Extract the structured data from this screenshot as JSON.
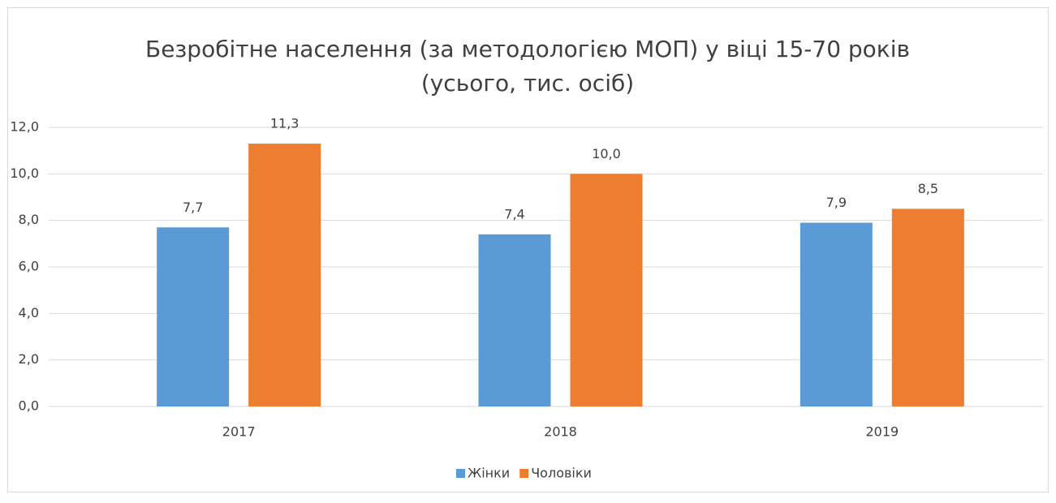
{
  "chart_data": {
    "type": "bar",
    "title": [
      "Безробітне населення (за методологією МОП) у віці 15-70 років",
      "(усього, тис. осіб)"
    ],
    "categories": [
      "2017",
      "2018",
      "2019"
    ],
    "series": [
      {
        "name": "Жінки",
        "color": "#5b9bd5",
        "values": [
          7.7,
          7.4,
          7.9
        ],
        "value_labels": [
          "7,7",
          "7,4",
          "7,9"
        ]
      },
      {
        "name": "Чоловіки",
        "color": "#ed7d31",
        "values": [
          11.3,
          10.0,
          8.5
        ],
        "value_labels": [
          "11,3",
          "10,0",
          "8,5"
        ]
      }
    ],
    "ylim": [
      0,
      12
    ],
    "yticks": [
      {
        "value": 0,
        "label": "0,0"
      },
      {
        "value": 2,
        "label": "2,0"
      },
      {
        "value": 4,
        "label": "4,0"
      },
      {
        "value": 6,
        "label": "6,0"
      },
      {
        "value": 8,
        "label": "8,0"
      },
      {
        "value": 10,
        "label": "10,0"
      },
      {
        "value": 12,
        "label": "12,0"
      }
    ],
    "grid": true,
    "legend": "bottom"
  }
}
